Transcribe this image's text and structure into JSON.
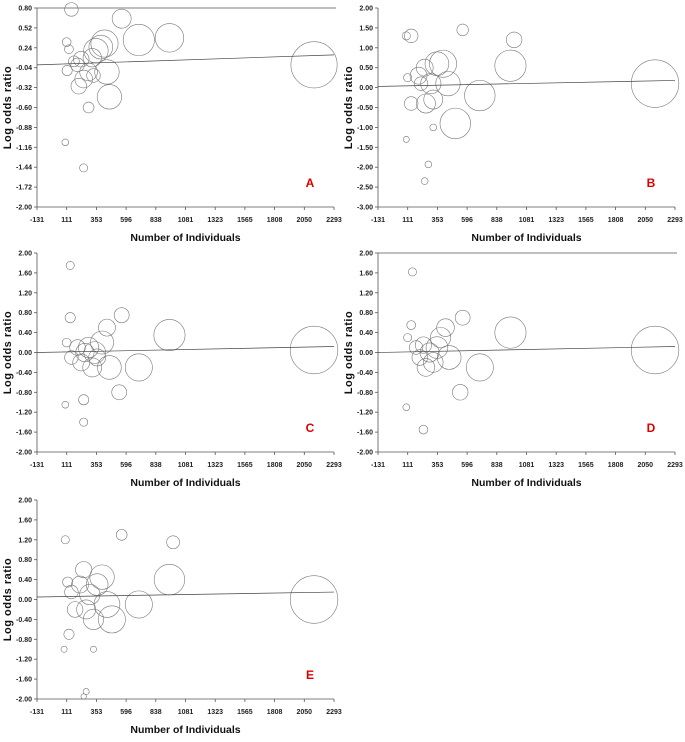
{
  "chart_data": [
    {
      "type": "scatter",
      "panel_label": "A",
      "xlabel": "Number of Individuals",
      "ylabel": "Log odds ratio",
      "xlim": [
        -131,
        2293
      ],
      "ylim": [
        -2.0,
        0.8
      ],
      "x_ticks": [
        "-131",
        "111",
        "353",
        "596",
        "838",
        "1081",
        "1323",
        "1565",
        "1808",
        "2050",
        "2293"
      ],
      "y_ticks": [
        "0.80",
        "0.52",
        "0.24",
        "-0.04",
        "-0.32",
        "-0.60",
        "-0.88",
        "-1.16",
        "-1.44",
        "-1.72",
        "-2.00"
      ],
      "top_border": true,
      "regression_line": [
        [
          -131,
          0.0
        ],
        [
          2293,
          0.14
        ]
      ],
      "bubbles": [
        [
          150,
          0.78,
          2
        ],
        [
          111,
          0.32,
          1.3
        ],
        [
          130,
          0.22,
          1.3
        ],
        [
          115,
          -0.08,
          1.5
        ],
        [
          170,
          0.05,
          1.6
        ],
        [
          200,
          0.0,
          2
        ],
        [
          230,
          0.08,
          2.3
        ],
        [
          210,
          -0.3,
          2.3
        ],
        [
          250,
          -0.2,
          2.6
        ],
        [
          290,
          -0.1,
          2.6
        ],
        [
          320,
          0.1,
          2.7
        ],
        [
          330,
          -0.15,
          2
        ],
        [
          350,
          0.2,
          3.6
        ],
        [
          390,
          0.25,
          3.5
        ],
        [
          420,
          0.3,
          4
        ],
        [
          440,
          -0.1,
          3.6
        ],
        [
          460,
          -0.45,
          3.6
        ],
        [
          560,
          0.65,
          2.8
        ],
        [
          700,
          0.35,
          4.6
        ],
        [
          950,
          0.38,
          4.2
        ],
        [
          2130,
          0.0,
          6.8
        ],
        [
          100,
          -1.09,
          1
        ],
        [
          250,
          -1.45,
          1.2
        ],
        [
          290,
          -0.6,
          1.6
        ]
      ]
    },
    {
      "type": "scatter",
      "panel_label": "B",
      "xlabel": "Number of Individuals",
      "ylabel": "Log odds ratio",
      "xlim": [
        -131,
        2293
      ],
      "ylim": [
        -3.0,
        2.0
      ],
      "x_ticks": [
        "-131",
        "111",
        "353",
        "596",
        "838",
        "1081",
        "1323",
        "1565",
        "1808",
        "2050",
        "2293"
      ],
      "y_ticks": [
        "2.00",
        "1.50",
        "1.00",
        "0.50",
        "0.00",
        "-0.50",
        "-1.00",
        "-1.50",
        "-2.00",
        "-2.50",
        "-3.00"
      ],
      "top_border": false,
      "regression_line": [
        [
          -131,
          0.03
        ],
        [
          2293,
          0.18
        ]
      ],
      "bubbles": [
        [
          100,
          1.3,
          1.2
        ],
        [
          140,
          1.3,
          2
        ],
        [
          111,
          0.25,
          1.2
        ],
        [
          140,
          -0.4,
          2
        ],
        [
          200,
          0.3,
          2.5
        ],
        [
          220,
          0.1,
          2
        ],
        [
          250,
          0.5,
          2.5
        ],
        [
          260,
          -0.4,
          2.8
        ],
        [
          300,
          0.1,
          3
        ],
        [
          320,
          -0.3,
          2.8
        ],
        [
          350,
          0.6,
          3.5
        ],
        [
          400,
          0.6,
          4
        ],
        [
          440,
          0.1,
          3.6
        ],
        [
          500,
          -0.9,
          4.5
        ],
        [
          560,
          1.45,
          1.7
        ],
        [
          700,
          -0.2,
          4.5
        ],
        [
          950,
          0.55,
          4.6
        ],
        [
          980,
          1.2,
          2.3
        ],
        [
          2130,
          0.1,
          7
        ],
        [
          100,
          -1.3,
          0.9
        ],
        [
          280,
          -1.93,
          1
        ],
        [
          250,
          -2.35,
          1
        ],
        [
          320,
          -1.0,
          1
        ]
      ]
    },
    {
      "type": "scatter",
      "panel_label": "C",
      "xlabel": "Number of Individuals",
      "ylabel": "Log odds ratio",
      "xlim": [
        -131,
        2293
      ],
      "ylim": [
        -2.0,
        2.0
      ],
      "x_ticks": [
        "-131",
        "111",
        "353",
        "596",
        "838",
        "1081",
        "1323",
        "1565",
        "1808",
        "2050",
        "2293"
      ],
      "y_ticks": [
        "2.00",
        "1.60",
        "1.20",
        "0.80",
        "0.40",
        "0.00",
        "-0.40",
        "-0.80",
        "-1.20",
        "-1.60",
        "-2.00"
      ],
      "top_border": false,
      "regression_line": [
        [
          -131,
          0.0
        ],
        [
          2293,
          0.12
        ]
      ],
      "bubbles": [
        [
          140,
          1.75,
          1.2
        ],
        [
          140,
          0.7,
          1.5
        ],
        [
          111,
          0.2,
          1.3
        ],
        [
          150,
          -0.1,
          2
        ],
        [
          200,
          0.1,
          2.3
        ],
        [
          230,
          -0.2,
          2.5
        ],
        [
          260,
          0.0,
          2.7
        ],
        [
          290,
          0.1,
          3
        ],
        [
          320,
          -0.3,
          2.8
        ],
        [
          340,
          0.0,
          3.2
        ],
        [
          360,
          -0.1,
          2.5
        ],
        [
          400,
          0.2,
          3.4
        ],
        [
          440,
          0.5,
          2.5
        ],
        [
          460,
          -0.3,
          3.5
        ],
        [
          560,
          0.75,
          2.2
        ],
        [
          540,
          -0.8,
          2.2
        ],
        [
          700,
          -0.3,
          4
        ],
        [
          950,
          0.35,
          4.6
        ],
        [
          2130,
          0.05,
          7
        ],
        [
          100,
          -1.05,
          1
        ],
        [
          250,
          -1.4,
          1.2
        ],
        [
          250,
          -0.95,
          1.5
        ]
      ]
    },
    {
      "type": "scatter",
      "panel_label": "D",
      "xlabel": "Number of Individuals",
      "ylabel": "Log odds ratio",
      "xlim": [
        -131,
        2293
      ],
      "ylim": [
        -2.0,
        2.0
      ],
      "x_ticks": [
        "-131",
        "111",
        "353",
        "596",
        "838",
        "1081",
        "1323",
        "1565",
        "1808",
        "2050",
        "2293"
      ],
      "y_ticks": [
        "2.00",
        "1.60",
        "1.20",
        "0.80",
        "0.40",
        "0.00",
        "-0.40",
        "-0.80",
        "-1.20",
        "-1.60",
        "-2.00"
      ],
      "top_border": true,
      "regression_line": [
        [
          -131,
          0.0
        ],
        [
          2293,
          0.12
        ]
      ],
      "bubbles": [
        [
          150,
          1.62,
          1.2
        ],
        [
          140,
          0.55,
          1.3
        ],
        [
          111,
          0.3,
          1.2
        ],
        [
          180,
          0.1,
          2
        ],
        [
          210,
          -0.1,
          2.3
        ],
        [
          240,
          0.15,
          2.4
        ],
        [
          260,
          -0.3,
          2.6
        ],
        [
          290,
          0.0,
          2.8
        ],
        [
          320,
          -0.2,
          2.9
        ],
        [
          350,
          0.1,
          3.2
        ],
        [
          380,
          0.3,
          3
        ],
        [
          420,
          0.5,
          2.6
        ],
        [
          450,
          -0.1,
          3.5
        ],
        [
          560,
          0.7,
          2.2
        ],
        [
          540,
          -0.8,
          2.3
        ],
        [
          700,
          -0.3,
          4
        ],
        [
          950,
          0.4,
          4.6
        ],
        [
          2130,
          0.05,
          7
        ],
        [
          100,
          -1.1,
          1
        ],
        [
          240,
          -1.55,
          1.3
        ]
      ]
    },
    {
      "type": "scatter",
      "panel_label": "E",
      "xlabel": "Number of Individuals",
      "ylabel": "Log odds ratio",
      "xlim": [
        -131,
        2293
      ],
      "ylim": [
        -2.0,
        2.0
      ],
      "x_ticks": [
        "-131",
        "111",
        "353",
        "596",
        "838",
        "1081",
        "1323",
        "1565",
        "1808",
        "2050",
        "2293"
      ],
      "y_ticks": [
        "2.00",
        "1.60",
        "1.20",
        "0.80",
        "0.40",
        "0.00",
        "-0.40",
        "-0.80",
        "-1.20",
        "-1.60",
        "-2.00"
      ],
      "top_border": false,
      "regression_line": [
        [
          -131,
          0.05
        ],
        [
          2293,
          0.15
        ]
      ],
      "bubbles": [
        [
          100,
          1.2,
          1.2
        ],
        [
          120,
          0.35,
          1.5
        ],
        [
          150,
          0.15,
          2
        ],
        [
          130,
          -0.7,
          1.5
        ],
        [
          180,
          -0.2,
          2.3
        ],
        [
          220,
          0.3,
          2.5
        ],
        [
          250,
          0.6,
          2.4
        ],
        [
          270,
          -0.2,
          2.8
        ],
        [
          300,
          0.1,
          3
        ],
        [
          330,
          -0.4,
          3
        ],
        [
          360,
          0.3,
          3.2
        ],
        [
          400,
          0.45,
          3.6
        ],
        [
          440,
          -0.1,
          3.8
        ],
        [
          480,
          -0.4,
          4
        ],
        [
          560,
          1.3,
          1.6
        ],
        [
          700,
          -0.1,
          4
        ],
        [
          950,
          0.4,
          4.5
        ],
        [
          980,
          1.15,
          1.9
        ],
        [
          2130,
          0.0,
          7
        ],
        [
          90,
          -1.0,
          0.9
        ],
        [
          270,
          -1.85,
          0.9
        ],
        [
          250,
          -1.95,
          0.8
        ],
        [
          330,
          -1.0,
          0.9
        ]
      ]
    }
  ]
}
